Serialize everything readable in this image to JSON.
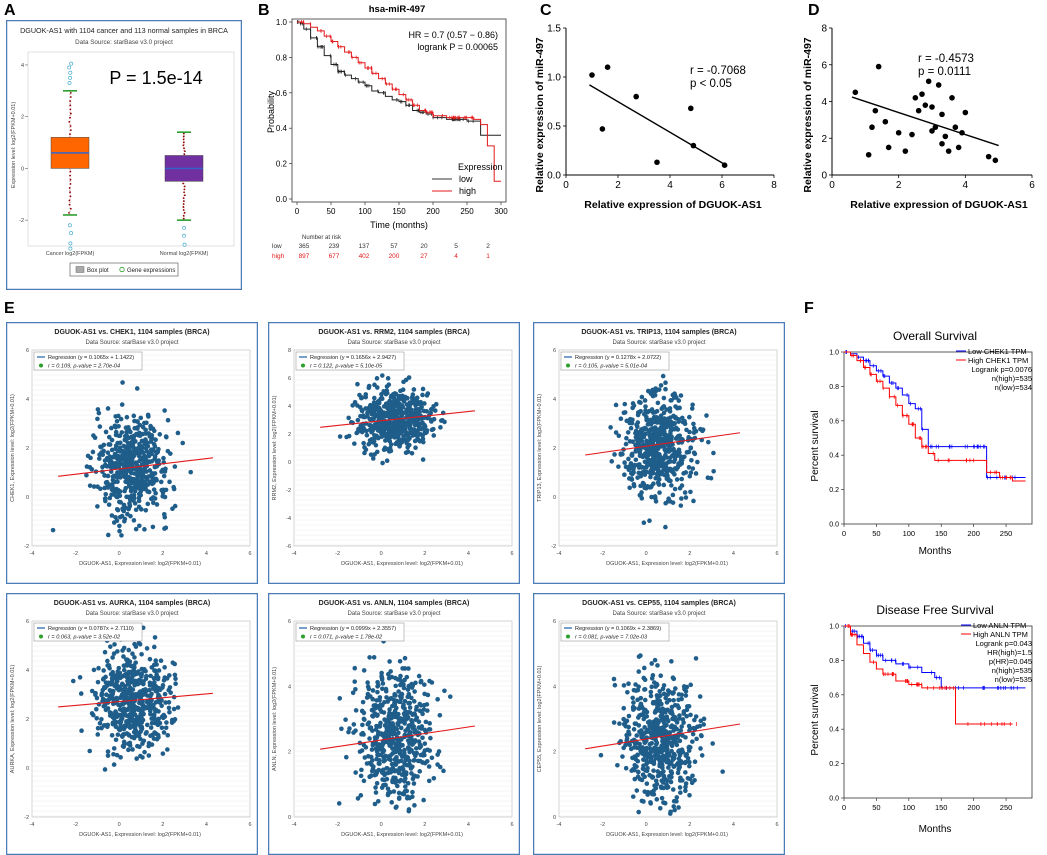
{
  "panel_labels": {
    "a": "A",
    "b": "B",
    "c": "C",
    "d": "D",
    "e": "E",
    "f": "F"
  },
  "colors": {
    "accent_blue": "#2166ac",
    "dot_blue": "#1f5d8a",
    "red": "#e41a1c",
    "orange": "#ff6600",
    "purple": "#7030a0",
    "green": "#2ca02c",
    "gray": "#808080"
  },
  "panel_a": {
    "title": "DGUOK-AS1 with 1104 cancer and 113 normal samples in BRCA",
    "source": "Data Source: starBase v3.0 project",
    "pvalue": "P = 1.5e-14",
    "ylabel": "Expression level: log2(FPKM+0.01)",
    "yticks": [
      "4",
      "2",
      "0",
      "-2"
    ],
    "xticks": [
      "Cancer log2(FPKM)",
      "Normal log2(FPKM)"
    ],
    "legend": [
      "Box plot",
      "Gene expressions"
    ]
  },
  "panel_b": {
    "title": "hsa-miR-497",
    "hr": "HR = 0.7 (0.57 − 0.86)",
    "logrank": "logrank P = 0.00065",
    "ylabel": "Probability",
    "xlabel": "Time (months)",
    "yticks": [
      "1.0",
      "0.8",
      "0.6",
      "0.4",
      "0.2",
      "0.0"
    ],
    "xticks": [
      "0",
      "50",
      "100",
      "150",
      "200",
      "250",
      "300"
    ],
    "legend_title": "Expression",
    "legend_low": "low",
    "legend_high": "high",
    "risk_title": "Number at risk",
    "risk_low_label": "low",
    "risk_high_label": "high",
    "risk_low": [
      "365",
      "239",
      "137",
      "57",
      "20",
      "5",
      "2"
    ],
    "risk_high": [
      "897",
      "677",
      "402",
      "200",
      "27",
      "4",
      "1"
    ]
  },
  "panel_c": {
    "r": "r = -0.7068",
    "p": "p < 0.05",
    "xlabel": "Relative expression of DGUOK-AS1",
    "ylabel": "Relative expression of miR-497",
    "xticks": [
      "0",
      "2",
      "4",
      "6",
      "8"
    ],
    "yticks": [
      "1.5",
      "1.0",
      "0.5",
      "0.0"
    ]
  },
  "panel_d": {
    "r": "r = -0.4573",
    "p": "p = 0.0111",
    "xlabel": "Relative expression of DGUOK-AS1",
    "ylabel": "Relative expression of miR-497",
    "xticks": [
      "0",
      "2",
      "4",
      "6"
    ],
    "yticks": [
      "8",
      "6",
      "4",
      "2",
      "0"
    ]
  },
  "panel_e": {
    "source": "Data Source: starBase v3.0 project",
    "xlabel": "DGUOK-AS1, Expression level: log2(FPKM+0.01)",
    "legend_regression": "Regression",
    "plots": [
      {
        "title": "DGUOK-AS1 vs. CHEK1, 1104 samples (BRCA)",
        "ylabel": "CHEK1, Expression level: log2(FPKM+0.01)",
        "reg": "Regression (y = 0.1065x + 1.1422)",
        "stat": "r = 0.109, p-value = 2.70e-04",
        "yticks": [
          "6",
          "4",
          "2",
          "0",
          "-2"
        ],
        "xticks": [
          "-4",
          "-2",
          "0",
          "2",
          "4",
          "6"
        ]
      },
      {
        "title": "DGUOK-AS1 vs. RRM2, 1104 samples (BRCA)",
        "ylabel": "RRM2, Expression level: log2(FPKM+0.01)",
        "reg": "Regression (y = 0.1656x + 2.9427)",
        "stat": "r = 0.122, p-value = 5.10e-05",
        "yticks": [
          "8",
          "6",
          "4",
          "2",
          "0",
          "-2",
          "-4",
          "-6"
        ],
        "xticks": [
          "-4",
          "-2",
          "0",
          "2",
          "4",
          "6"
        ]
      },
      {
        "title": "DGUOK-AS1 vs. TRIP13, 1104 samples (BRCA)",
        "ylabel": "TRIP13, Expression level: log2(FPKM+0.01)",
        "reg": "Regression (y = 0.1278x + 2.0722)",
        "stat": "r = 0.105, p-value = 5.01e-04",
        "yticks": [
          "6",
          "4",
          "2",
          "0",
          "-2"
        ],
        "xticks": [
          "-4",
          "-2",
          "0",
          "2",
          "4",
          "6"
        ]
      },
      {
        "title": "DGUOK-AS1 vs. AURKA, 1104 samples (BRCA)",
        "ylabel": "AURKA, Expression level: log2(FPKM+0.01)",
        "reg": "Regression (y = 0.0787x + 2.7110)",
        "stat": "r = 0.063, p-value = 3.52e-02",
        "yticks": [
          "6",
          "4",
          "2",
          "0",
          "-2"
        ],
        "xticks": [
          "-4",
          "-2",
          "0",
          "2",
          "4",
          "6"
        ]
      },
      {
        "title": "DGUOK-AS1 vs. ANLN, 1104 samples (BRCA)",
        "ylabel": "ANLN, Expression level: log2(FPKM+0.01)",
        "reg": "Regression (y = 0.0999x + 2.3557)",
        "stat": "r = 0.071, p-value = 1.78e-02",
        "yticks": [
          "6",
          "4",
          "2",
          "0"
        ],
        "xticks": [
          "-4",
          "-2",
          "0",
          "2",
          "4",
          "6"
        ]
      },
      {
        "title": "DGUOK-AS1 vs. CEP55, 1104 samples (BRCA)",
        "ylabel": "CEP55, Expression level: log2(FPKM+0.01)",
        "reg": "Regression (y = 0.1069x + 2.3869)",
        "stat": "r = 0.081, p-value = 7.02e-03",
        "yticks": [
          "6",
          "4",
          "2",
          "0"
        ],
        "xticks": [
          "-4",
          "-2",
          "0",
          "2",
          "4",
          "6"
        ]
      }
    ]
  },
  "panel_f": {
    "ylabel": "Percent survival",
    "xlabel": "Months",
    "yticks": [
      "1.0",
      "0.8",
      "0.6",
      "0.4",
      "0.2",
      "0.0"
    ],
    "os": {
      "title": "Overall Survival",
      "low": "Low CHEK1 TPM",
      "high": "High CHEK1 TPM",
      "stats": [
        "Logrank p=0.0076",
        "n(high)=535",
        "n(low)=534"
      ],
      "xticks": [
        "0",
        "50",
        "100",
        "150",
        "200",
        "250"
      ]
    },
    "dfs": {
      "title": "Disease Free Survival",
      "low": "Low ANLN TPM",
      "high": "High ANLN TPM",
      "stats": [
        "Logrank p=0.043",
        "HR(high)=1.5",
        "p(HR)=0.045",
        "n(high)=535",
        "n(low)=535"
      ],
      "xticks": [
        "0",
        "50",
        "100",
        "150",
        "200",
        "250"
      ]
    }
  },
  "chart_data": [
    {
      "type": "box",
      "panel": "A",
      "categories": [
        "Cancer",
        "Normal"
      ],
      "box": [
        {
          "q1": 0.0,
          "median": 0.6,
          "q3": 1.2,
          "whisker_low": -1.8,
          "whisker_high": 3.0
        },
        {
          "q1": -0.5,
          "median": 0.0,
          "q3": 0.5,
          "whisker_low": -2.0,
          "whisker_high": 1.4
        }
      ],
      "ylim": [
        -3,
        4.5
      ]
    },
    {
      "type": "line",
      "panel": "B",
      "xlim": [
        0,
        310
      ],
      "ylim": [
        0,
        1
      ],
      "series": [
        {
          "name": "low",
          "x": [
            0,
            5,
            10,
            20,
            30,
            40,
            50,
            60,
            70,
            80,
            90,
            100,
            110,
            120,
            130,
            140,
            150,
            160,
            170,
            180,
            190,
            200,
            220,
            250,
            270,
            300
          ],
          "y": [
            1,
            0.99,
            0.96,
            0.91,
            0.86,
            0.81,
            0.76,
            0.72,
            0.7,
            0.68,
            0.66,
            0.64,
            0.61,
            0.6,
            0.58,
            0.56,
            0.55,
            0.53,
            0.5,
            0.49,
            0.48,
            0.46,
            0.45,
            0.44,
            0.36,
            0.36
          ]
        },
        {
          "name": "high",
          "x": [
            0,
            5,
            10,
            20,
            30,
            40,
            50,
            60,
            70,
            80,
            90,
            100,
            110,
            120,
            130,
            140,
            150,
            160,
            170,
            180,
            190,
            200,
            220,
            240,
            260,
            270,
            280,
            290,
            300
          ],
          "y": [
            1,
            1,
            0.99,
            0.97,
            0.95,
            0.92,
            0.89,
            0.86,
            0.83,
            0.8,
            0.77,
            0.74,
            0.71,
            0.68,
            0.65,
            0.62,
            0.59,
            0.56,
            0.53,
            0.5,
            0.49,
            0.47,
            0.46,
            0.46,
            0.45,
            0.42,
            0.3,
            0.1,
            0.1
          ]
        }
      ]
    },
    {
      "type": "scatter",
      "panel": "C",
      "x": [
        1.0,
        1.4,
        1.6,
        2.7,
        3.5,
        4.8,
        4.9,
        6.1
      ],
      "y": [
        1.02,
        0.47,
        1.1,
        0.8,
        0.13,
        0.68,
        0.3,
        0.1
      ],
      "fit": {
        "slope": -0.156,
        "intercept": 1.06
      },
      "xlim": [
        0,
        8
      ],
      "ylim": [
        0,
        1.5
      ]
    },
    {
      "type": "scatter",
      "panel": "D",
      "x": [
        0.7,
        1.1,
        1.2,
        1.3,
        1.4,
        1.6,
        1.7,
        2.0,
        2.2,
        2.4,
        2.5,
        2.6,
        2.7,
        2.8,
        2.9,
        3.0,
        3.0,
        3.1,
        3.2,
        3.3,
        3.3,
        3.4,
        3.5,
        3.6,
        3.7,
        3.8,
        3.9,
        4.0,
        4.7,
        4.9
      ],
      "y": [
        4.5,
        1.1,
        2.6,
        3.5,
        5.9,
        2.9,
        1.5,
        2.3,
        1.3,
        2.2,
        4.2,
        3.5,
        4.4,
        3.8,
        5.1,
        2.4,
        3.7,
        2.6,
        4.9,
        1.7,
        3.3,
        2.1,
        1.3,
        4.2,
        2.6,
        1.5,
        2.3,
        3.4,
        1.0,
        0.8
      ],
      "fit": {
        "slope": -0.6,
        "intercept": 4.6
      },
      "xlim": [
        0,
        6
      ],
      "ylim": [
        0,
        8
      ]
    },
    {
      "type": "scatter",
      "panel": "E",
      "series": [
        {
          "name": "CHEK1",
          "center_x": 0.6,
          "center_y": 1.2,
          "slope": 0.1065,
          "intercept": 1.1422,
          "ylim": [
            -2,
            6
          ]
        },
        {
          "name": "RRM2",
          "center_x": 0.6,
          "center_y": 3.0,
          "slope": 0.1656,
          "intercept": 2.9427,
          "ylim": [
            -6,
            8
          ]
        },
        {
          "name": "TRIP13",
          "center_x": 0.6,
          "center_y": 2.1,
          "slope": 0.1278,
          "intercept": 2.0722,
          "ylim": [
            -2,
            6
          ]
        },
        {
          "name": "AURKA",
          "center_x": 0.6,
          "center_y": 2.7,
          "slope": 0.0787,
          "intercept": 2.711,
          "ylim": [
            -2,
            6
          ]
        },
        {
          "name": "ANLN",
          "center_x": 0.6,
          "center_y": 2.4,
          "slope": 0.0999,
          "intercept": 2.3557,
          "ylim": [
            0,
            6
          ]
        },
        {
          "name": "CEP55",
          "center_x": 0.6,
          "center_y": 2.4,
          "slope": 0.1069,
          "intercept": 2.3869,
          "ylim": [
            0,
            6
          ]
        }
      ],
      "xlim": [
        -4,
        6
      ]
    },
    {
      "type": "line",
      "panel": "F-OS",
      "xlim": [
        0,
        290
      ],
      "ylim": [
        0,
        1
      ],
      "series": [
        {
          "name": "Low CHEK1 TPM",
          "x": [
            0,
            10,
            20,
            30,
            40,
            50,
            60,
            70,
            80,
            90,
            100,
            110,
            120,
            130,
            140,
            150,
            160,
            180,
            200,
            220,
            240,
            260,
            280
          ],
          "y": [
            1,
            0.99,
            0.97,
            0.95,
            0.92,
            0.89,
            0.86,
            0.82,
            0.79,
            0.75,
            0.7,
            0.67,
            0.55,
            0.45,
            0.45,
            0.45,
            0.45,
            0.45,
            0.45,
            0.27,
            0.27,
            0.27,
            0.27
          ]
        },
        {
          "name": "High CHEK1 TPM",
          "x": [
            0,
            10,
            20,
            30,
            40,
            50,
            60,
            70,
            80,
            90,
            100,
            110,
            120,
            130,
            140,
            150,
            160,
            180,
            200,
            220,
            240,
            260,
            280
          ],
          "y": [
            1,
            0.98,
            0.95,
            0.91,
            0.87,
            0.83,
            0.79,
            0.74,
            0.69,
            0.63,
            0.58,
            0.5,
            0.45,
            0.41,
            0.37,
            0.37,
            0.37,
            0.37,
            0.37,
            0.3,
            0.27,
            0.25,
            0.25
          ]
        }
      ]
    },
    {
      "type": "line",
      "panel": "F-DFS",
      "xlim": [
        0,
        290
      ],
      "ylim": [
        0,
        1
      ],
      "series": [
        {
          "name": "Low ANLN TPM",
          "x": [
            0,
            10,
            20,
            30,
            40,
            50,
            60,
            80,
            100,
            120,
            140,
            150,
            200,
            250,
            280
          ],
          "y": [
            1,
            0.97,
            0.94,
            0.9,
            0.86,
            0.83,
            0.8,
            0.78,
            0.76,
            0.73,
            0.7,
            0.64,
            0.64,
            0.64,
            0.64
          ]
        },
        {
          "name": "High ANLN TPM",
          "x": [
            0,
            10,
            20,
            30,
            40,
            50,
            60,
            80,
            100,
            120,
            140,
            160,
            170,
            172,
            200,
            260
          ],
          "y": [
            1,
            0.95,
            0.89,
            0.84,
            0.79,
            0.75,
            0.72,
            0.68,
            0.66,
            0.64,
            0.64,
            0.64,
            0.64,
            0.43,
            0.43,
            0.43
          ]
        }
      ]
    }
  ]
}
